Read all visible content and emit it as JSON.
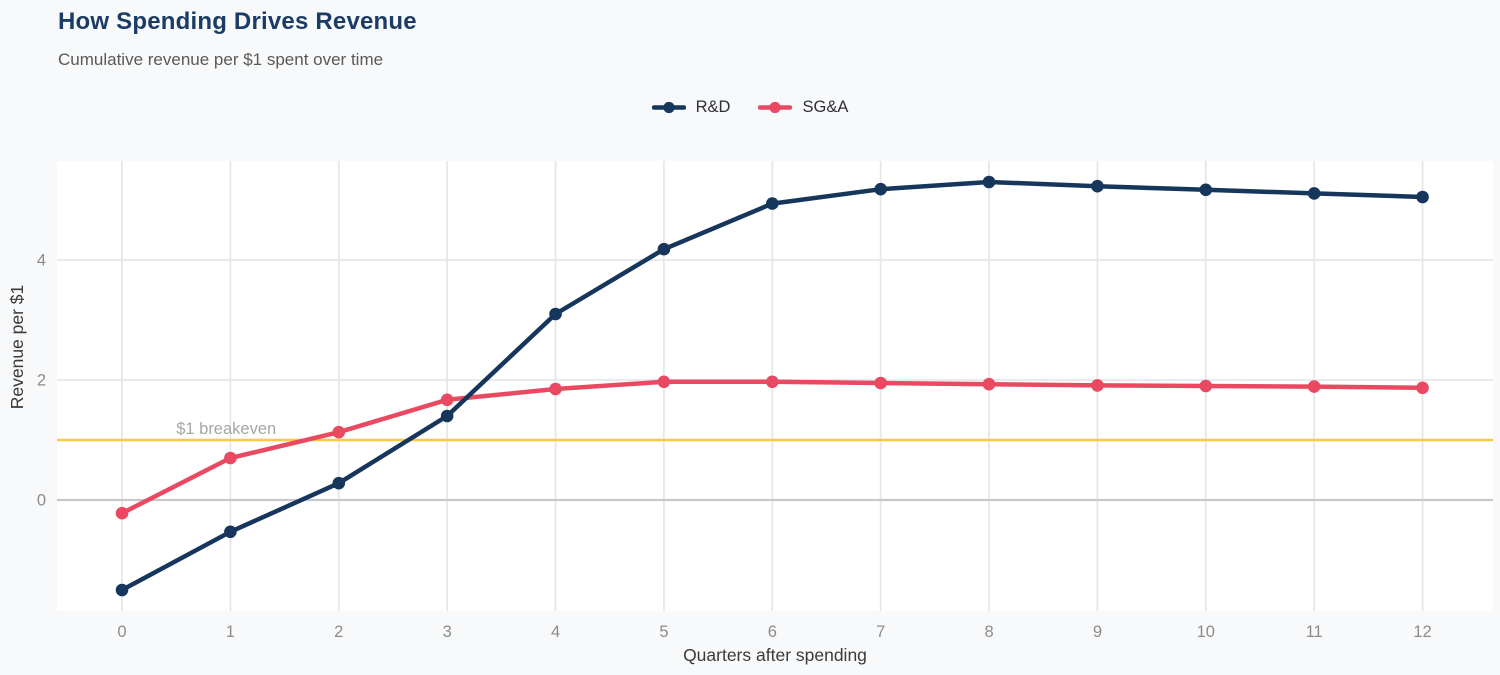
{
  "header": {
    "title": "How Spending Drives Revenue",
    "subtitle": "Cumulative revenue per $1 spent over time"
  },
  "chart_data": {
    "type": "line",
    "title": "How Spending Drives Revenue",
    "subtitle": "Cumulative revenue per $1 spent over time",
    "xlabel": "Quarters after spending",
    "ylabel": "Revenue per $1",
    "x": [
      0,
      1,
      2,
      3,
      4,
      5,
      6,
      7,
      8,
      9,
      10,
      11,
      12
    ],
    "series": [
      {
        "name": "R&D",
        "color": "#17365c",
        "values": [
          -1.5,
          -0.53,
          0.28,
          1.4,
          3.1,
          4.18,
          4.94,
          5.18,
          5.3,
          5.23,
          5.17,
          5.11,
          5.05
        ]
      },
      {
        "name": "SG&A",
        "color": "#e94a62",
        "values": [
          -0.22,
          0.7,
          1.13,
          1.67,
          1.85,
          1.97,
          1.97,
          1.95,
          1.93,
          1.91,
          1.9,
          1.89,
          1.87
        ]
      }
    ],
    "xticks": [
      "0",
      "1",
      "2",
      "3",
      "4",
      "5",
      "6",
      "7",
      "8",
      "9",
      "10",
      "11",
      "12"
    ],
    "yticks": [
      "0",
      "2",
      "4"
    ],
    "xlim": [
      -0.6,
      12.65
    ],
    "ylim": [
      -1.85,
      5.65
    ],
    "grid": true,
    "legend_position": "top-center",
    "reference_line": {
      "y": 1,
      "label": "$1 breakeven",
      "color": "#fbc747",
      "label_color": "#a6a6a6"
    }
  },
  "colors": {
    "background": "#f8f9fa",
    "plot_background": "#ffffff",
    "grid": "#e7e7e9",
    "zero_line": "#c8c8cc",
    "title": "#1b3c66",
    "subtitle": "#595959",
    "tick_label": "#8c8c8c",
    "axis_label": "#3a3a3a"
  }
}
